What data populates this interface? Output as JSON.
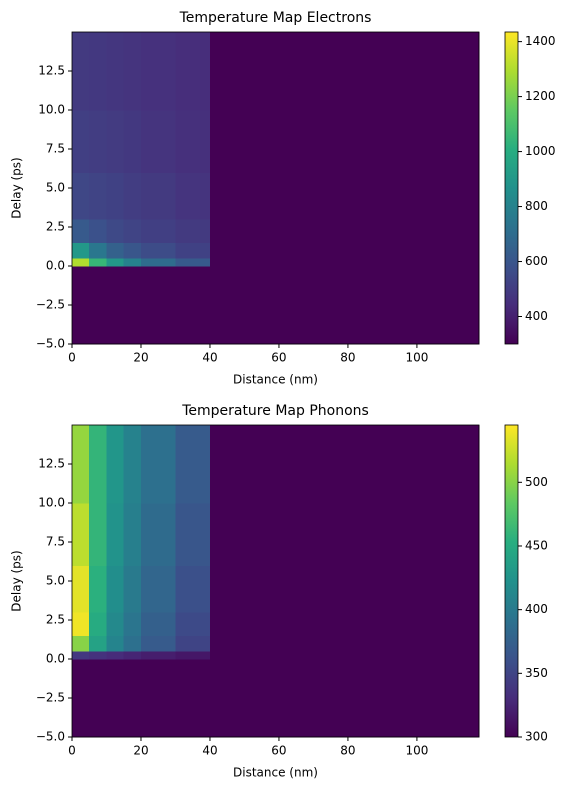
{
  "chart_data": [
    {
      "type": "heatmap",
      "title": "Temperature Map Electrons",
      "xlabel": "Distance (nm)",
      "ylabel": "Delay (ps)",
      "colormap": "viridis",
      "x_edges": [
        0,
        5,
        10,
        15,
        20,
        30,
        40,
        118
      ],
      "y_edges": [
        -5,
        0,
        0.5,
        1.5,
        3,
        6,
        10,
        15
      ],
      "z": [
        [
          300,
          300,
          300,
          300,
          300,
          300,
          300
        ],
        [
          1300,
          1050,
          900,
          800,
          700,
          620,
          300
        ],
        [
          900,
          750,
          650,
          600,
          560,
          520,
          300
        ],
        [
          620,
          580,
          550,
          530,
          510,
          490,
          300
        ],
        [
          540,
          530,
          520,
          505,
          490,
          470,
          300
        ],
        [
          510,
          505,
          495,
          485,
          470,
          455,
          300
        ],
        [
          490,
          485,
          478,
          470,
          458,
          445,
          300
        ]
      ],
      "xlim": [
        0,
        118
      ],
      "ylim": [
        -5,
        15
      ],
      "clim": [
        300,
        1435
      ],
      "xticks": [
        0,
        20,
        40,
        60,
        80,
        100
      ],
      "yticks": [
        {
          "value": -5,
          "label": "−5.0"
        },
        {
          "value": -2.5,
          "label": "−2.5"
        },
        {
          "value": 0,
          "label": "0.0"
        },
        2.5,
        {
          "value": 5,
          "label": "5.0"
        },
        7.5,
        {
          "value": 10,
          "label": "10.0"
        },
        12.5
      ],
      "cticks": [
        400,
        600,
        800,
        1000,
        1200,
        1400
      ]
    },
    {
      "type": "heatmap",
      "title": "Temperature Map Phonons",
      "xlabel": "Distance (nm)",
      "ylabel": "Delay (ps)",
      "colormap": "viridis",
      "x_edges": [
        0,
        5,
        10,
        15,
        20,
        30,
        40,
        118
      ],
      "y_edges": [
        -5,
        0,
        0.5,
        1.5,
        3,
        6,
        10,
        15
      ],
      "z": [
        [
          300,
          300,
          300,
          300,
          300,
          300,
          300
        ],
        [
          340,
          335,
          330,
          325,
          320,
          315,
          300
        ],
        [
          500,
          440,
          410,
          390,
          370,
          350,
          300
        ],
        [
          540,
          450,
          415,
          395,
          375,
          355,
          300
        ],
        [
          535,
          455,
          420,
          400,
          380,
          360,
          300
        ],
        [
          520,
          460,
          425,
          405,
          385,
          365,
          300
        ],
        [
          505,
          460,
          428,
          408,
          390,
          370,
          300
        ]
      ],
      "xlim": [
        0,
        118
      ],
      "ylim": [
        -5,
        15
      ],
      "clim": [
        300,
        545
      ],
      "xticks": [
        0,
        20,
        40,
        60,
        80,
        100
      ],
      "yticks": [
        {
          "value": -5,
          "label": "−5.0"
        },
        {
          "value": -2.5,
          "label": "−2.5"
        },
        {
          "value": 0,
          "label": "0.0"
        },
        2.5,
        {
          "value": 5,
          "label": "5.0"
        },
        7.5,
        {
          "value": 10,
          "label": "10.0"
        },
        12.5
      ],
      "cticks": [
        300,
        350,
        400,
        450,
        500
      ]
    }
  ]
}
